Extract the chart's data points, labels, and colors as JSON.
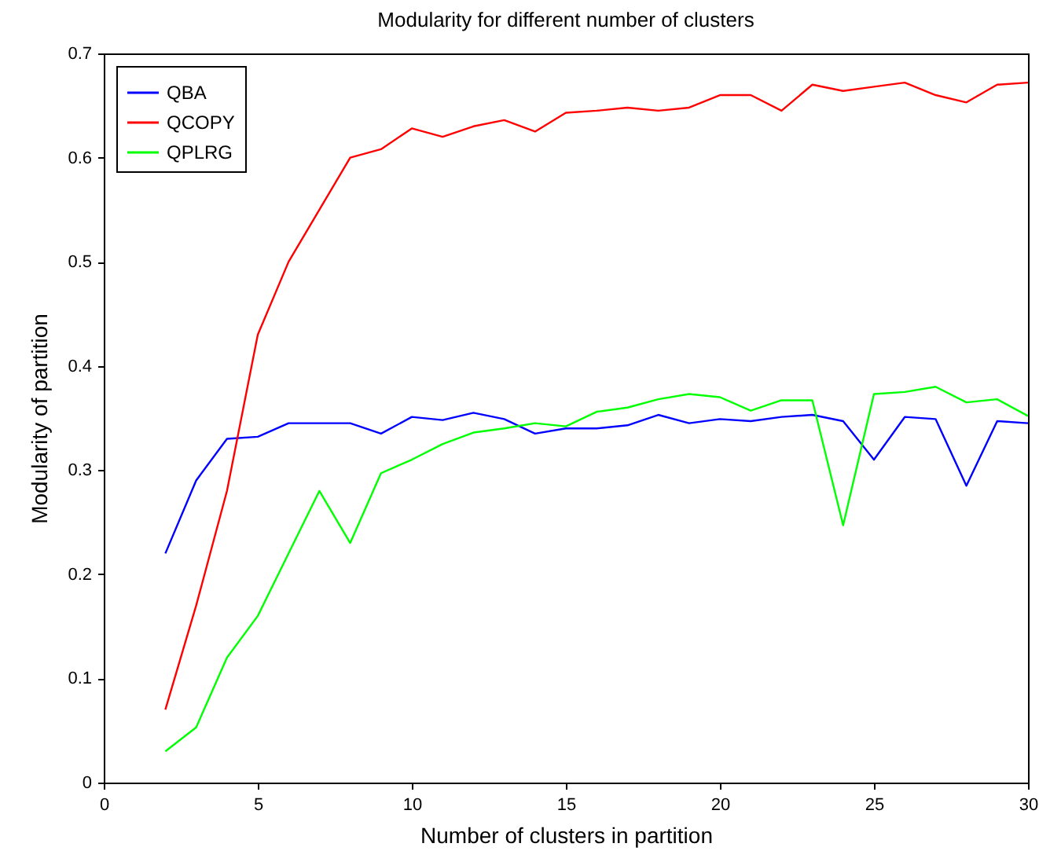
{
  "chart_data": {
    "type": "line",
    "title": "Modularity for different number of clusters",
    "xlabel": "Number of clusters in partition",
    "ylabel": "Modularity of partition",
    "x": [
      2,
      3,
      4,
      5,
      6,
      7,
      8,
      9,
      10,
      11,
      12,
      13,
      14,
      15,
      16,
      17,
      18,
      19,
      20,
      21,
      22,
      23,
      24,
      25,
      26,
      27,
      28,
      29,
      30
    ],
    "series": [
      {
        "name": "QBA",
        "color": "#0000ff",
        "values": [
          0.22,
          0.29,
          0.33,
          0.332,
          0.345,
          0.345,
          0.345,
          0.335,
          0.351,
          0.348,
          0.355,
          0.349,
          0.335,
          0.34,
          0.34,
          0.343,
          0.353,
          0.345,
          0.349,
          0.347,
          0.351,
          0.353,
          0.347,
          0.31,
          0.351,
          0.349,
          0.285,
          0.347,
          0.345
        ]
      },
      {
        "name": "QCOPY",
        "color": "#ff0000",
        "values": [
          0.07,
          0.17,
          0.28,
          0.43,
          0.5,
          0.55,
          0.6,
          0.608,
          0.628,
          0.62,
          0.63,
          0.636,
          0.625,
          0.643,
          0.645,
          0.648,
          0.645,
          0.648,
          0.66,
          0.66,
          0.645,
          0.67,
          0.664,
          0.668,
          0.672,
          0.66,
          0.653,
          0.67,
          0.672
        ]
      },
      {
        "name": "QPLRG",
        "color": "#00ff00",
        "values": [
          0.03,
          0.053,
          0.12,
          0.16,
          0.22,
          0.28,
          0.23,
          0.297,
          0.31,
          0.325,
          0.336,
          0.34,
          0.345,
          0.342,
          0.356,
          0.36,
          0.368,
          0.373,
          0.37,
          0.357,
          0.367,
          0.367,
          0.247,
          0.373,
          0.375,
          0.38,
          0.365,
          0.368,
          0.352
        ]
      }
    ],
    "xlim": [
      0,
      30
    ],
    "xticks": [
      0,
      5,
      10,
      15,
      20,
      25,
      30
    ],
    "ylim": [
      0,
      0.7
    ],
    "yticks": [
      0,
      0.1,
      0.2,
      0.3,
      0.4,
      0.5,
      0.6,
      0.7
    ],
    "legend": "top left",
    "grid": false,
    "marker": "none",
    "line_style": "solid"
  }
}
